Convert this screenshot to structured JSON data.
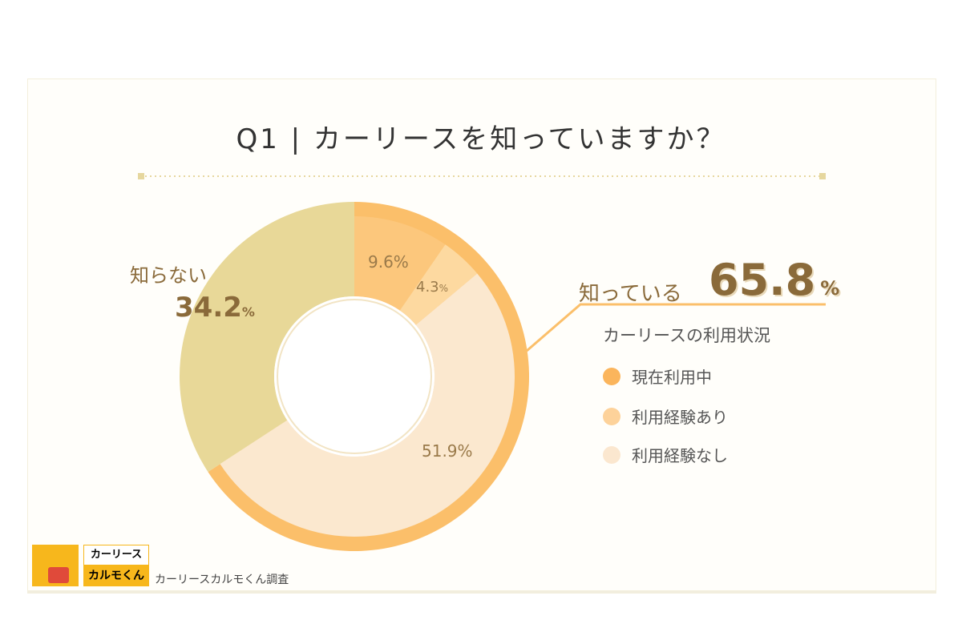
{
  "title": "Q1 | カーリースを知っていますか？",
  "chart_data": {
    "type": "pie",
    "title": "Q1 | カーリースを知っていますか？",
    "outer": [
      {
        "label": "知っている",
        "value": 65.8,
        "color": "#fbbf6a"
      },
      {
        "label": "知らない",
        "value": 34.2,
        "color": "#e8d898"
      }
    ],
    "inner": [
      {
        "label": "現在利用中",
        "value": 9.6,
        "color": "#fcc77c"
      },
      {
        "label": "利用経験あり",
        "value": 4.3,
        "color": "#fdd9a0"
      },
      {
        "label": "利用経験なし",
        "value": 51.9,
        "color": "#fbe8cf"
      }
    ],
    "legend_title": "カーリースの利用状況"
  },
  "labels": {
    "known": "知っている",
    "known_value": "65.8",
    "unknown": "知らない",
    "unknown_value": "34.2",
    "pct": "%",
    "v1": "9.6%",
    "v2": "4.3",
    "v3": "51.9%"
  },
  "legend": {
    "title": "カーリースの利用状況",
    "items": [
      {
        "label": "現在利用中",
        "color": "#fbb55c"
      },
      {
        "label": "利用経験あり",
        "color": "#fdd29a"
      },
      {
        "label": "利用経験なし",
        "color": "#fbe7cf"
      }
    ]
  },
  "logo": {
    "line1": "カーリース",
    "line2": "カルモくん"
  },
  "source": "カーリースカルモくん調査"
}
